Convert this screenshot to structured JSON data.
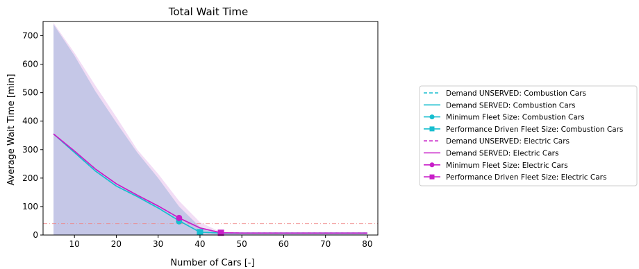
{
  "chart_data": {
    "type": "line",
    "title": "Total Wait Time",
    "xlabel": "Number of Cars [-]",
    "ylabel": "Average Wait Time [min]",
    "xlim": [
      2.5,
      82.5
    ],
    "ylim": [
      0,
      750
    ],
    "xticks": [
      10,
      20,
      30,
      40,
      50,
      60,
      70,
      80
    ],
    "yticks": [
      0,
      100,
      200,
      300,
      400,
      500,
      600,
      700
    ],
    "grid": false,
    "legend_position": "outside-right",
    "series": [
      {
        "name": "Demand UNSERVED: Combustion Cars",
        "color": "#17becf",
        "style": "dashed",
        "marker": "none",
        "x": [
          5,
          10,
          15,
          20,
          25,
          30,
          35,
          40,
          45,
          50,
          60,
          70,
          80
        ],
        "y": [
          355,
          290,
          225,
          172,
          135,
          95,
          50,
          10,
          7,
          7,
          7,
          7,
          7
        ]
      },
      {
        "name": "Demand SERVED: Combustion Cars",
        "color": "#17becf",
        "style": "solid",
        "marker": "none",
        "x": [
          5,
          10,
          15,
          20,
          25,
          30,
          35,
          40,
          45,
          50,
          60,
          70,
          80
        ],
        "y": [
          355,
          290,
          225,
          172,
          135,
          95,
          50,
          10,
          7,
          7,
          7,
          7,
          7
        ]
      },
      {
        "name": "Minimum Fleet Size: Combustion Cars",
        "color": "#17becf",
        "style": "solid",
        "marker": "circle",
        "x": [
          35
        ],
        "y": [
          48
        ]
      },
      {
        "name": "Performance Driven Fleet Size: Combustion Cars",
        "color": "#17becf",
        "style": "solid",
        "marker": "square",
        "x": [
          40
        ],
        "y": [
          10
        ]
      },
      {
        "name": "Demand UNSERVED: Electric Cars",
        "color": "#c81ec8",
        "style": "dashed",
        "marker": "none",
        "x": [
          5,
          10,
          15,
          20,
          25,
          30,
          35,
          40,
          45,
          50,
          60,
          70,
          80
        ],
        "y": [
          355,
          295,
          232,
          180,
          140,
          102,
          60,
          25,
          8,
          7,
          7,
          7,
          7
        ]
      },
      {
        "name": "Demand SERVED: Electric Cars",
        "color": "#c81ec8",
        "style": "solid",
        "marker": "none",
        "x": [
          5,
          10,
          15,
          20,
          25,
          30,
          35,
          40,
          45,
          50,
          60,
          70,
          80
        ],
        "y": [
          355,
          295,
          232,
          180,
          140,
          102,
          60,
          25,
          8,
          7,
          7,
          7,
          7
        ]
      },
      {
        "name": "Minimum Fleet Size: Electric Cars",
        "color": "#c81ec8",
        "style": "solid",
        "marker": "circle",
        "x": [
          35
        ],
        "y": [
          60
        ]
      },
      {
        "name": "Performance Driven Fleet Size: Electric Cars",
        "color": "#c81ec8",
        "style": "solid",
        "marker": "square",
        "x": [
          45
        ],
        "y": [
          8
        ]
      }
    ],
    "bands": [
      {
        "color": "#e3b4e8",
        "opacity": 0.45,
        "x": [
          5,
          10,
          15,
          20,
          25,
          30,
          35,
          40,
          45,
          50,
          60,
          70,
          80
        ],
        "lower": [
          0,
          0,
          0,
          0,
          0,
          0,
          0,
          0,
          0,
          0,
          0,
          0,
          0
        ],
        "upper": [
          745,
          640,
          525,
          415,
          300,
          215,
          120,
          45,
          10,
          8,
          8,
          8,
          8
        ]
      },
      {
        "color": "#8fadd6",
        "opacity": 0.45,
        "x": [
          5,
          10,
          15,
          20,
          25,
          30,
          35,
          40,
          45,
          50,
          60,
          70,
          80
        ],
        "lower": [
          0,
          0,
          0,
          0,
          0,
          0,
          0,
          0,
          0,
          0,
          0,
          0,
          0
        ],
        "upper": [
          740,
          630,
          505,
          395,
          290,
          200,
          100,
          28,
          8,
          7,
          7,
          7,
          7
        ]
      }
    ],
    "reference_line": {
      "y": 40,
      "color": "#f08080",
      "style": "dashdot"
    }
  }
}
